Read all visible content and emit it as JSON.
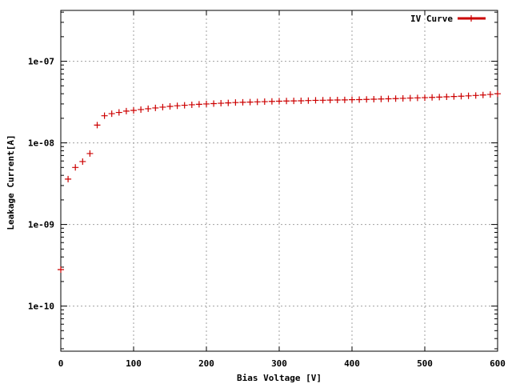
{
  "chart_data": {
    "type": "scatter",
    "xlabel": "Bias Voltage [V]",
    "ylabel": "Leakage Current[A]",
    "xlim": [
      0,
      600
    ],
    "ylim": [
      2.8e-11,
      4.2e-07
    ],
    "yscale": "log",
    "grid": true,
    "legend_position": "top-right",
    "x_ticks": [
      0,
      100,
      200,
      300,
      400,
      500,
      600
    ],
    "x_tick_labels": [
      "0",
      "100",
      "200",
      "300",
      "400",
      "500",
      "600"
    ],
    "y_ticks": [
      1e-10,
      1e-09,
      1e-08,
      1e-07
    ],
    "y_tick_labels": [
      "1e-10",
      "1e-09",
      "1e-08",
      "1e-07"
    ],
    "series": [
      {
        "name": "IV Curve",
        "color": "#cc0000",
        "marker": "plus",
        "points": [
          [
            0,
            2.8e-10
          ],
          [
            10,
            3.6e-09
          ],
          [
            20,
            5e-09
          ],
          [
            30,
            5.9e-09
          ],
          [
            40,
            7.4e-09
          ],
          [
            50,
            1.65e-08
          ],
          [
            60,
            2.15e-08
          ],
          [
            70,
            2.28e-08
          ],
          [
            80,
            2.36e-08
          ],
          [
            90,
            2.45e-08
          ],
          [
            100,
            2.5e-08
          ],
          [
            110,
            2.56e-08
          ],
          [
            120,
            2.62e-08
          ],
          [
            130,
            2.68e-08
          ],
          [
            140,
            2.74e-08
          ],
          [
            150,
            2.8e-08
          ],
          [
            160,
            2.85e-08
          ],
          [
            170,
            2.89e-08
          ],
          [
            180,
            2.93e-08
          ],
          [
            190,
            2.97e-08
          ],
          [
            200,
            3e-08
          ],
          [
            210,
            3.03e-08
          ],
          [
            220,
            3.06e-08
          ],
          [
            230,
            3.09e-08
          ],
          [
            240,
            3.12e-08
          ],
          [
            250,
            3.14e-08
          ],
          [
            260,
            3.16e-08
          ],
          [
            270,
            3.18e-08
          ],
          [
            280,
            3.2e-08
          ],
          [
            290,
            3.22e-08
          ],
          [
            300,
            3.24e-08
          ],
          [
            310,
            3.26e-08
          ],
          [
            320,
            3.27e-08
          ],
          [
            330,
            3.28e-08
          ],
          [
            340,
            3.3e-08
          ],
          [
            350,
            3.32e-08
          ],
          [
            360,
            3.33e-08
          ],
          [
            370,
            3.34e-08
          ],
          [
            380,
            3.35e-08
          ],
          [
            390,
            3.36e-08
          ],
          [
            400,
            3.38e-08
          ],
          [
            410,
            3.39e-08
          ],
          [
            420,
            3.41e-08
          ],
          [
            430,
            3.43e-08
          ],
          [
            440,
            3.45e-08
          ],
          [
            450,
            3.47e-08
          ],
          [
            460,
            3.49e-08
          ],
          [
            470,
            3.51e-08
          ],
          [
            480,
            3.54e-08
          ],
          [
            490,
            3.56e-08
          ],
          [
            500,
            3.58e-08
          ],
          [
            510,
            3.61e-08
          ],
          [
            520,
            3.64e-08
          ],
          [
            530,
            3.67e-08
          ],
          [
            540,
            3.7e-08
          ],
          [
            550,
            3.73e-08
          ],
          [
            560,
            3.77e-08
          ],
          [
            570,
            3.81e-08
          ],
          [
            580,
            3.86e-08
          ],
          [
            590,
            3.92e-08
          ],
          [
            600,
            4e-08
          ]
        ]
      }
    ]
  }
}
